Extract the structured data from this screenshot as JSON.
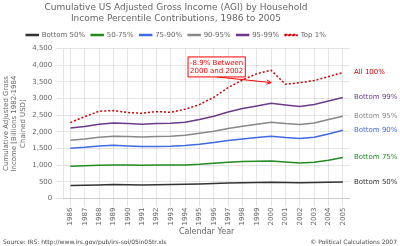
{
  "chart_data": {
    "type": "line",
    "title": "Cumulative US Adjusted Gross Income (AGI) by Household\nIncome Percentile Contributions, 1986 to 2005",
    "x_label": "Calendar Year",
    "y_label": "Cumulative Adjusted Gross\nIncome [Billions 1982-1984\nChained USD]",
    "x": [
      1986,
      1987,
      1988,
      1989,
      1990,
      1991,
      1992,
      1993,
      1994,
      1995,
      1996,
      1997,
      1998,
      1999,
      2000,
      2001,
      2002,
      2003,
      2004,
      2005
    ],
    "series": [
      {
        "name": "Bottom 50%",
        "color": "#333333",
        "line_style": "solid",
        "values": [
          390,
          400,
          410,
          420,
          415,
          410,
          415,
          420,
          430,
          440,
          455,
          465,
          475,
          480,
          490,
          480,
          475,
          480,
          490,
          500
        ]
      },
      {
        "name": "50-75%",
        "color": "#228B22",
        "line_style": "solid",
        "values": [
          970,
          985,
          1000,
          1010,
          1005,
          1000,
          1005,
          1005,
          1010,
          1030,
          1060,
          1090,
          1110,
          1120,
          1130,
          1100,
          1070,
          1090,
          1150,
          1230
        ]
      },
      {
        "name": "75-90%",
        "color": "#4169E1",
        "line_style": "solid",
        "values": [
          1510,
          1540,
          1580,
          1600,
          1580,
          1560,
          1565,
          1570,
          1590,
          1630,
          1680,
          1740,
          1790,
          1830,
          1870,
          1830,
          1800,
          1840,
          1940,
          2050
        ]
      },
      {
        "name": "90-95%",
        "color": "#888888",
        "line_style": "solid",
        "values": [
          1750,
          1790,
          1840,
          1870,
          1860,
          1845,
          1860,
          1870,
          1900,
          1960,
          2020,
          2100,
          2170,
          2230,
          2290,
          2250,
          2220,
          2270,
          2370,
          2470
        ]
      },
      {
        "name": "95-99%",
        "color": "#6B3A8A",
        "line_style": "solid",
        "values": [
          2120,
          2160,
          2230,
          2270,
          2250,
          2230,
          2250,
          2260,
          2290,
          2370,
          2470,
          2600,
          2700,
          2780,
          2860,
          2810,
          2760,
          2820,
          2930,
          3030
        ]
      },
      {
        "name": "Top 1%",
        "color": "#CC0000",
        "line_style": "dotted",
        "values": [
          2280,
          2460,
          2620,
          2640,
          2580,
          2560,
          2610,
          2590,
          2680,
          2820,
          3040,
          3330,
          3560,
          3750,
          3850,
          3430,
          3480,
          3540,
          3660,
          3780
        ]
      }
    ],
    "xlim": [
      1985.5,
      2005.5
    ],
    "xticks": [
      1986,
      1987,
      1988,
      1989,
      1990,
      1991,
      1992,
      1993,
      1994,
      1995,
      1996,
      1997,
      1998,
      1999,
      2000,
      2001,
      2002,
      2003,
      2004,
      2005
    ],
    "ylim": [
      0,
      4500
    ],
    "yticks": [
      0,
      500,
      {
        "value": 1000,
        "label": "1,000"
      },
      {
        "value": 1500,
        "label": "1,500"
      },
      {
        "value": 2000,
        "label": "2,000"
      },
      {
        "value": 2500,
        "label": "2,500"
      },
      {
        "value": 3000,
        "label": "3,000"
      },
      {
        "value": 3500,
        "label": "3,500"
      },
      {
        "value": 4000,
        "label": "4,000"
      },
      {
        "value": 4500,
        "label": "4,500"
      }
    ],
    "grid": true,
    "legend": "top",
    "annotations": [
      {
        "text": "All 100%",
        "series": "Top 1%",
        "color": "#CC0000"
      },
      {
        "text": "Bottom 99%",
        "series": "95-99%",
        "color": "#6B3A8A"
      },
      {
        "text": "Bottom 95%",
        "series": "90-95%",
        "color": "#888888"
      },
      {
        "text": "Bottom 90%",
        "series": "75-90%",
        "color": "#4169E1"
      },
      {
        "text": "Bottom 75%",
        "series": "50-75%",
        "color": "#228B22"
      },
      {
        "text": "Bottom 50%",
        "series": "Bottom 50%",
        "color": "#333333"
      },
      {
        "text": "-8.9% Between\n2000 and 2002",
        "x": 1996.2,
        "y": 3650,
        "arrow_x": 2000,
        "arrow_y": 3480,
        "color": "red"
      }
    ],
    "notes": [
      "Source: IRS: http://www.irs.gov/pub/irs-soi/05in05tr.xls",
      "© Political Calculations 2007"
    ]
  }
}
